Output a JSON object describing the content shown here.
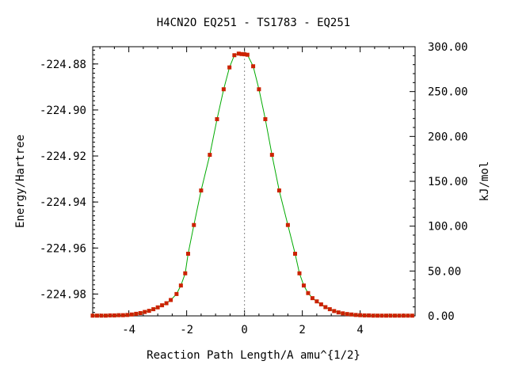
{
  "chart_data": {
    "type": "line",
    "title": "H4CN2O   EQ251 - TS1783 - EQ251",
    "xlabel": "Reaction Path Length/A amu^{1/2}",
    "ylabel": "Energy/Hartree",
    "y2label": "kJ/mol",
    "xlim": [
      -5.25,
      5.9
    ],
    "ylim": [
      -224.9895,
      -224.8725
    ],
    "y2lim": [
      0,
      300
    ],
    "x_ticks": [
      -4,
      -2,
      0,
      2,
      4
    ],
    "x_tick_labels": [
      "-4",
      "-2",
      "0",
      "2",
      "4"
    ],
    "y_ticks": [
      -224.88,
      -224.9,
      -224.92,
      -224.94,
      -224.96,
      -224.98
    ],
    "y_tick_labels": [
      "-224.88",
      "-224.90",
      "-224.92",
      "-224.94",
      "-224.96",
      "-224.98"
    ],
    "y2_ticks": [
      300,
      250,
      200,
      150,
      100,
      50,
      0
    ],
    "y2_tick_labels": [
      "300.00",
      "250.00",
      "200.00",
      "150.00",
      "100.00",
      "50.00",
      "0.00"
    ],
    "ts_marker_x": 0,
    "grid": false,
    "line_color": "#00aa00",
    "marker_color": "#cc2200",
    "ts_line_color": "#888888",
    "series": [
      {
        "x": [
          -5.25,
          -5.1,
          -4.95,
          -4.8,
          -4.65,
          -4.5,
          -4.35,
          -4.2,
          -4.05,
          -3.9,
          -3.75,
          -3.6,
          -3.45,
          -3.3,
          -3.15,
          -3.0,
          -2.85,
          -2.7,
          -2.55,
          -2.35,
          -2.2,
          -2.05,
          -1.95,
          -1.75,
          -1.5,
          -1.2,
          -0.95,
          -0.72,
          -0.52,
          -0.35,
          -0.2,
          -0.1,
          0.0,
          0.1,
          0.3,
          0.5,
          0.72,
          0.95,
          1.2,
          1.5,
          1.75,
          1.9,
          2.05,
          2.2,
          2.35,
          2.5,
          2.65,
          2.8,
          2.95,
          3.1,
          3.25,
          3.4,
          3.55,
          3.7,
          3.85,
          4.0,
          4.15,
          4.3,
          4.45,
          4.6,
          4.75,
          4.9,
          5.05,
          5.2,
          5.35,
          5.5,
          5.65,
          5.8
        ],
        "y": [
          -224.9894,
          -224.9894,
          -224.9894,
          -224.9894,
          -224.9893,
          -224.9893,
          -224.9892,
          -224.9892,
          -224.9891,
          -224.9889,
          -224.9886,
          -224.9883,
          -224.9878,
          -224.9873,
          -224.9866,
          -224.9858,
          -224.9849,
          -224.984,
          -224.9826,
          -224.98,
          -224.9763,
          -224.971,
          -224.9625,
          -224.95,
          -224.935,
          -224.9195,
          -224.904,
          -224.891,
          -224.8815,
          -224.8762,
          -224.8755,
          -224.8757,
          -224.8758,
          -224.876,
          -224.881,
          -224.891,
          -224.904,
          -224.9195,
          -224.935,
          -224.95,
          -224.9625,
          -224.971,
          -224.9763,
          -224.9796,
          -224.9818,
          -224.9832,
          -224.9845,
          -224.9857,
          -224.9866,
          -224.9874,
          -224.988,
          -224.9884,
          -224.9887,
          -224.9889,
          -224.9891,
          -224.9892,
          -224.9893,
          -224.9893,
          -224.9894,
          -224.9894,
          -224.9894,
          -224.9894,
          -224.9894,
          -224.9894,
          -224.9894,
          -224.9894,
          -224.9894,
          -224.9894
        ]
      }
    ]
  }
}
